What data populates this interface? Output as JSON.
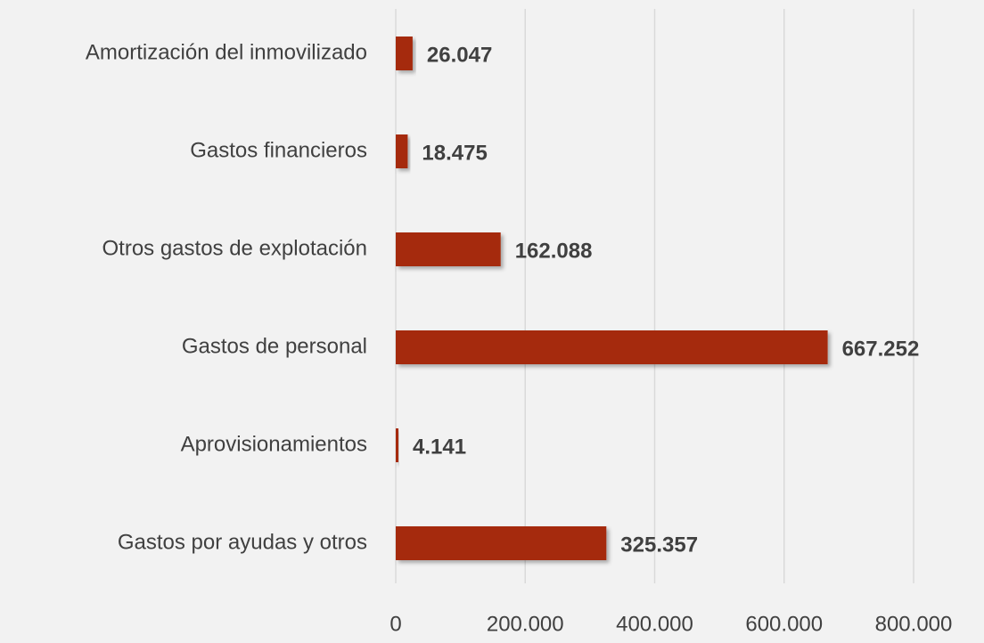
{
  "chart_data": {
    "type": "bar",
    "orientation": "horizontal",
    "categories": [
      "Amortización del inmovilizado",
      "Gastos financieros",
      "Otros gastos de explotación",
      "Gastos de personal",
      "Aprovisionamientos",
      "Gastos por ayudas y otros"
    ],
    "values": [
      26047,
      18475,
      162088,
      667252,
      4141,
      325357
    ],
    "value_labels": [
      "26.047",
      "18.475",
      "162.088",
      "667.252",
      "4.141",
      "325.357"
    ],
    "color": "#a52a0f",
    "xlim": [
      0,
      800000
    ],
    "xticks": [
      0,
      {
        "value": 200000,
        "label": "200.000"
      },
      {
        "value": 400000,
        "label": "400.000"
      },
      {
        "value": 600000,
        "label": "600.000"
      },
      {
        "value": 800000,
        "label": "800.000"
      }
    ],
    "grid": true
  }
}
